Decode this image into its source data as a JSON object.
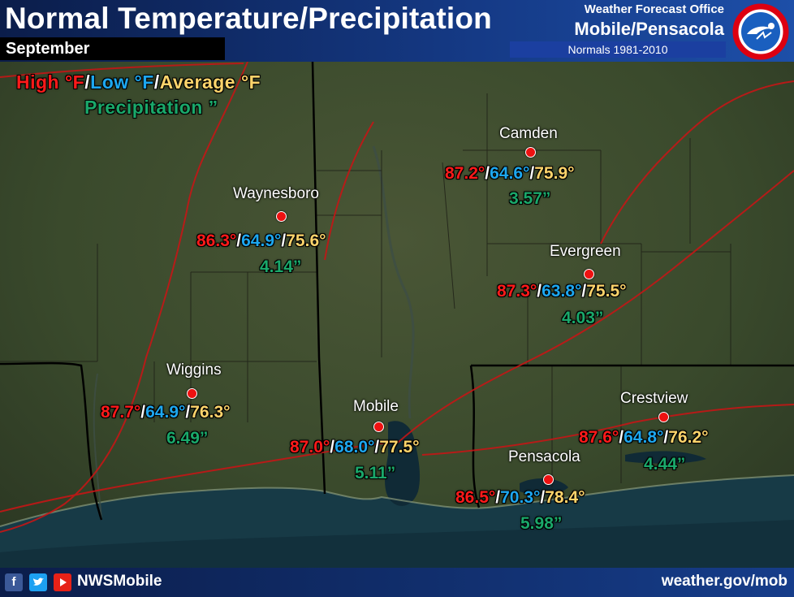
{
  "header": {
    "title": "Normal Temperature/Precipitation",
    "month": "September",
    "office_line1": "Weather Forecast Office",
    "office_line2": "Mobile/Pensacola",
    "normals": "Normals 1981-2010",
    "logo_icon": "nws-logo-icon"
  },
  "legend": {
    "high": "High °F",
    "low": "Low °F",
    "average": "Average °F",
    "sep": "/",
    "precip": "Precipitation ”"
  },
  "colors": {
    "high": "#ff1a1a",
    "low": "#1da7ef",
    "average": "#fdd46b",
    "precip": "#1aa86a",
    "header": "#153a86"
  },
  "stations": [
    {
      "name": "Camden",
      "high": "87.2°",
      "low": "64.6°",
      "avg": "75.9°",
      "precip": "3.57”"
    },
    {
      "name": "Waynesboro",
      "high": "86.3°",
      "low": "64.9°",
      "avg": "75.6°",
      "precip": "4.14”"
    },
    {
      "name": "Evergreen",
      "high": "87.3°",
      "low": "63.8°",
      "avg": "75.5°",
      "precip": "4.03”"
    },
    {
      "name": "Wiggins",
      "high": "87.7°",
      "low": "64.9°",
      "avg": "76.3°",
      "precip": "6.49”"
    },
    {
      "name": "Mobile",
      "high": "87.0°",
      "low": "68.0°",
      "avg": "77.5°",
      "precip": "5.11”"
    },
    {
      "name": "Crestview",
      "high": "87.6°",
      "low": "64.8°",
      "avg": "76.2°",
      "precip": "4.44”"
    },
    {
      "name": "Pensacola",
      "high": "86.5°",
      "low": "70.3°",
      "avg": "78.4°",
      "precip": "5.98”"
    }
  ],
  "footer": {
    "facebook_icon": "facebook-icon",
    "twitter_icon": "twitter-icon",
    "youtube_icon": "youtube-icon",
    "handle": "NWSMobile",
    "website": "weather.gov/mob"
  }
}
